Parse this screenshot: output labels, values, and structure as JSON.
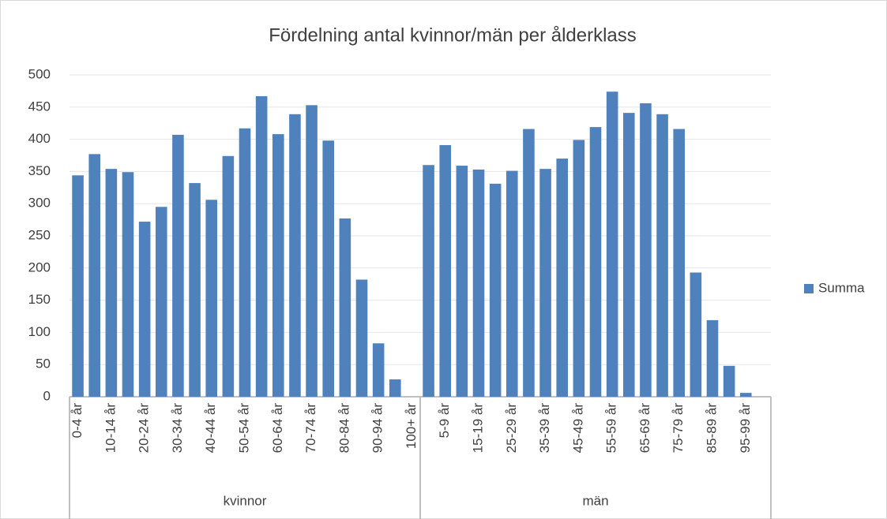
{
  "chart_data": {
    "type": "bar",
    "title": "Fördelning antal kvinnor/män per ålderklass",
    "groups": [
      {
        "label": "kvinnor",
        "categories": [
          "0-4 år",
          null,
          "10-14 år",
          null,
          "20-24 år",
          null,
          "30-34 år",
          null,
          "40-44 år",
          null,
          "50-54 år",
          null,
          "60-64 år",
          null,
          "70-74 år",
          null,
          "80-84 år",
          null,
          "90-94 år",
          null,
          "100+ år"
        ]
      },
      {
        "label": "män",
        "categories": [
          null,
          "5-9 år",
          null,
          "15-19 år",
          null,
          "25-29 år",
          null,
          "35-39 år",
          null,
          "45-49 år",
          null,
          "55-59 år",
          null,
          "65-69 år",
          null,
          "75-79 år",
          null,
          "85-89 år",
          null,
          "95-99 år",
          null
        ]
      }
    ],
    "series": [
      {
        "name": "Summa",
        "color": "#4f81bd",
        "values": [
          344,
          377,
          354,
          349,
          272,
          295,
          407,
          332,
          306,
          374,
          417,
          467,
          408,
          439,
          453,
          398,
          277,
          182,
          83,
          27,
          0,
          360,
          391,
          359,
          353,
          331,
          351,
          416,
          354,
          370,
          399,
          419,
          474,
          441,
          456,
          439,
          416,
          193,
          119,
          48,
          6,
          0
        ]
      }
    ],
    "ylim": [
      0,
      500
    ],
    "yticks": [
      0,
      50,
      100,
      150,
      200,
      250,
      300,
      350,
      400,
      450,
      500
    ],
    "grid": true,
    "legend": "right"
  }
}
